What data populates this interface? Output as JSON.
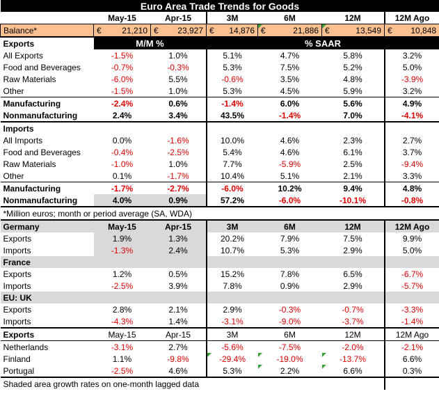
{
  "title": "Euro Area Trade Trends for Goods",
  "columns": [
    "May-15",
    "Apr-15",
    "3M",
    "6M",
    "12M",
    "12M Ago"
  ],
  "balance": {
    "label": "Balance*",
    "currency": "€",
    "values": [
      "21,210",
      "23,927",
      "14,876",
      "21,886",
      "13,549",
      "10,848"
    ]
  },
  "exports": {
    "label": "Exports",
    "mm_label": "M/M %",
    "saar_label": "% SAAR",
    "rows": [
      {
        "label": "All Exports",
        "values": [
          "-1.5%",
          "1.0%",
          "5.1%",
          "4.7%",
          "5.8%",
          "3.2%"
        ]
      },
      {
        "label": "Food and Beverages",
        "values": [
          "-0.7%",
          "-0.3%",
          "5.3%",
          "7.5%",
          "5.2%",
          "5.0%"
        ]
      },
      {
        "label": "Raw Materials",
        "values": [
          "-6.0%",
          "5.5%",
          "-0.6%",
          "3.5%",
          "4.8%",
          "-3.9%"
        ]
      },
      {
        "label": "Other",
        "values": [
          "-1.5%",
          "1.0%",
          "5.3%",
          "4.5%",
          "5.9%",
          "3.2%"
        ]
      }
    ],
    "bold_rows": [
      {
        "label": "Manufacturing",
        "values": [
          "-2.4%",
          "0.6%",
          "-1.4%",
          "6.0%",
          "5.6%",
          "4.9%"
        ]
      },
      {
        "label": "Nonmanufacturing",
        "values": [
          "2.4%",
          "3.4%",
          "43.5%",
          "-1.4%",
          "7.0%",
          "-4.1%"
        ]
      }
    ]
  },
  "imports": {
    "label": "Imports",
    "rows": [
      {
        "label": "All Imports",
        "values": [
          "0.0%",
          "-1.6%",
          "10.0%",
          "4.6%",
          "2.3%",
          "2.7%"
        ]
      },
      {
        "label": "Food and Beverages",
        "values": [
          "-0.4%",
          "-2.5%",
          "5.4%",
          "4.6%",
          "6.1%",
          "3.7%"
        ]
      },
      {
        "label": "Raw Materials",
        "values": [
          "-1.0%",
          "1.0%",
          "7.7%",
          "-5.9%",
          "2.5%",
          "-9.4%"
        ]
      },
      {
        "label": "Other",
        "values": [
          "0.1%",
          "-1.7%",
          "10.4%",
          "5.1%",
          "2.1%",
          "3.3%"
        ]
      }
    ],
    "bold_rows": [
      {
        "label": "Manufacturing",
        "values": [
          "-1.7%",
          "-2.7%",
          "-6.0%",
          "10.2%",
          "9.4%",
          "4.8%"
        ]
      },
      {
        "label": "Nonmanufacturing",
        "values": [
          "4.0%",
          "0.9%",
          "57.2%",
          "-6.0%",
          "-10.1%",
          "-0.8%"
        ]
      }
    ]
  },
  "note": "*Million euros; month or period average (SA, WDA)",
  "countries": [
    {
      "label": "Germany",
      "rows": [
        {
          "label": "Exports",
          "values": [
            "1.9%",
            "1.3%",
            "20.2%",
            "7.9%",
            "7.5%",
            "9.9%"
          ]
        },
        {
          "label": "Imports",
          "values": [
            "-1.3%",
            "2.4%",
            "10.7%",
            "5.3%",
            "2.9%",
            "5.0%"
          ]
        }
      ]
    },
    {
      "label": "France",
      "rows": [
        {
          "label": "Exports",
          "values": [
            "1.2%",
            "0.5%",
            "15.2%",
            "7.8%",
            "6.5%",
            "-6.7%"
          ]
        },
        {
          "label": "Imports",
          "values": [
            "-2.5%",
            "3.9%",
            "7.8%",
            "0.9%",
            "2.9%",
            "-5.7%"
          ]
        }
      ]
    },
    {
      "label": "EU: UK",
      "rows": [
        {
          "label": "Exports",
          "values": [
            "2.8%",
            "2.1%",
            "2.9%",
            "-0.3%",
            "-0.7%",
            "-3.3%"
          ]
        },
        {
          "label": "Imports",
          "values": [
            "-4.3%",
            "1.4%",
            "-3.1%",
            "-9.0%",
            "-3.7%",
            "-1.4%"
          ]
        }
      ]
    }
  ],
  "exports_by_dest": {
    "label": "Exports",
    "rows": [
      {
        "label": "Netherlands",
        "values": [
          "-3.1%",
          "2.7%",
          "-5.6%",
          "-7.5%",
          "-2.0%",
          "-2.1%"
        ]
      },
      {
        "label": "Finland",
        "values": [
          "1.1%",
          "-9.8%",
          "-29.4%",
          "-19.0%",
          "-13.7%",
          "6.6%"
        ]
      },
      {
        "label": "Portugal",
        "values": [
          "-2.5%",
          "4.6%",
          "5.3%",
          "2.2%",
          "6.6%",
          "0.3%"
        ]
      }
    ]
  },
  "footnote": "Shaded area growth rates on one-month lagged data",
  "colors": {
    "negative": "#e00000",
    "balance_fill": "#fac090",
    "shade": "#d9d9d9",
    "header": "#000000"
  }
}
